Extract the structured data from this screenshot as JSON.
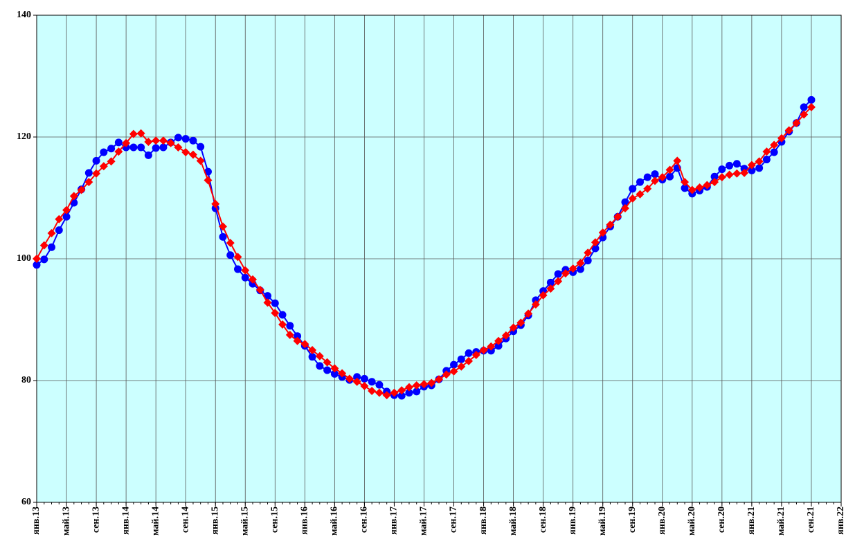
{
  "chart_data": {
    "type": "line",
    "categories": [
      "янв.13",
      null,
      null,
      null,
      "май.13",
      null,
      null,
      null,
      "сен.13",
      null,
      null,
      null,
      "янв.14",
      null,
      null,
      null,
      "май.14",
      null,
      null,
      null,
      "сен.14",
      null,
      null,
      null,
      "янв.15",
      null,
      null,
      null,
      "май.15",
      null,
      null,
      null,
      "сен.15",
      null,
      null,
      null,
      "янв.16",
      null,
      null,
      null,
      "май.16",
      null,
      null,
      null,
      "сен.16",
      null,
      null,
      null,
      "янв.17",
      null,
      null,
      null,
      "май.17",
      null,
      null,
      null,
      "сен.17",
      null,
      null,
      null,
      "янв.18",
      null,
      null,
      null,
      "май.18",
      null,
      null,
      null,
      "сен.18",
      null,
      null,
      null,
      "янв.19",
      null,
      null,
      null,
      "май.19",
      null,
      null,
      null,
      "сен.19",
      null,
      null,
      null,
      "янв.20",
      null,
      null,
      null,
      "май.20",
      null,
      null,
      null,
      "сен.20",
      null,
      null,
      null,
      "янв.21",
      null,
      null,
      null,
      "май.21",
      null,
      null,
      null,
      "сен.21",
      null,
      null,
      null,
      "янв.22"
    ],
    "series": [
      {
        "color": "#0000ff",
        "marker": "circle",
        "values": [
          99.0,
          99.9,
          101.9,
          104.7,
          106.9,
          109.2,
          111.4,
          114.1,
          116.1,
          117.5,
          118.1,
          119.1,
          118.3,
          118.3,
          118.3,
          117.0,
          118.2,
          118.3,
          119.1,
          119.9,
          119.7,
          119.4,
          118.4,
          114.3,
          108.3,
          103.6,
          100.6,
          98.3,
          96.9,
          95.9,
          94.8,
          93.9,
          92.7,
          90.8,
          89.0,
          87.3,
          85.7,
          83.9,
          82.4,
          81.7,
          81.1,
          80.6,
          80.1,
          80.6,
          80.3,
          79.8,
          79.3,
          78.2,
          77.6,
          77.5,
          78.0,
          78.2,
          79.0,
          79.2,
          80.2,
          81.6,
          82.6,
          83.5,
          84.5,
          84.7,
          84.9,
          84.9,
          85.7,
          86.9,
          88.1,
          89.1,
          90.7,
          93.2,
          94.7,
          96.1,
          97.5,
          98.2,
          97.8,
          98.3,
          99.7,
          101.7,
          103.5,
          105.3,
          106.9,
          109.3,
          111.5,
          112.6,
          113.4,
          113.9,
          113.0,
          113.5,
          114.9,
          111.6,
          110.7,
          111.2,
          111.8,
          113.5,
          114.7,
          115.3,
          115.6,
          114.8,
          114.5,
          114.9,
          116.3,
          117.5,
          119.2,
          120.9,
          122.3,
          124.9,
          126.1,
          null,
          null,
          null,
          null
        ]
      },
      {
        "color": "#ff0000",
        "marker": "diamond",
        "values": [
          100.0,
          102.2,
          104.2,
          106.5,
          108.0,
          110.3,
          111.3,
          112.6,
          114.0,
          115.2,
          116.0,
          117.6,
          119.0,
          120.5,
          120.6,
          119.2,
          119.4,
          119.4,
          119.0,
          118.3,
          117.5,
          117.1,
          116.1,
          112.9,
          109.0,
          105.3,
          102.6,
          100.3,
          98.1,
          96.6,
          94.9,
          92.8,
          91.1,
          89.2,
          87.5,
          86.5,
          86.0,
          85.0,
          84.0,
          83.0,
          82.0,
          81.2,
          80.3,
          79.8,
          79.1,
          78.3,
          78.0,
          77.6,
          78.0,
          78.4,
          78.9,
          79.2,
          79.4,
          79.6,
          80.2,
          81.0,
          81.5,
          82.3,
          83.2,
          84.2,
          85.0,
          85.6,
          86.5,
          87.4,
          88.7,
          89.5,
          91.0,
          92.5,
          94.0,
          95.1,
          96.3,
          97.6,
          98.4,
          99.3,
          101.0,
          102.7,
          104.3,
          105.6,
          106.9,
          108.3,
          109.9,
          110.6,
          111.5,
          112.8,
          113.4,
          114.6,
          116.1,
          112.6,
          111.3,
          111.7,
          112.1,
          112.6,
          113.4,
          113.8,
          114.0,
          114.1,
          115.4,
          116.0,
          117.6,
          118.7,
          119.8,
          121.1,
          122.3,
          123.7,
          124.9,
          null,
          null,
          null,
          null
        ]
      }
    ],
    "ylim": [
      60,
      140
    ],
    "yticks": [
      60,
      80,
      100,
      120,
      140
    ],
    "grid": true,
    "background": "#ccffff"
  }
}
